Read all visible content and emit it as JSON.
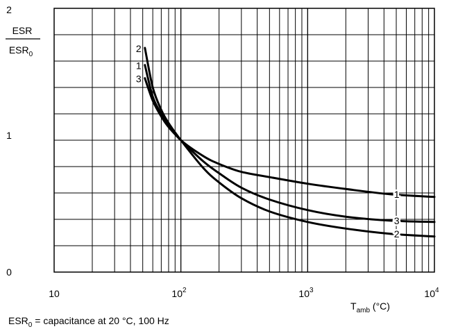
{
  "chart_data": {
    "type": "line",
    "x_scale": "log",
    "y_scale": "linear",
    "xlim": [
      10,
      10000
    ],
    "ylim": [
      0,
      2
    ],
    "grid": true,
    "x_ticks": [
      {
        "value": 10,
        "base": "10",
        "exp": ""
      },
      {
        "value": 100,
        "base": "10",
        "exp": "2"
      },
      {
        "value": 1000,
        "base": "10",
        "exp": "3"
      },
      {
        "value": 10000,
        "base": "10",
        "exp": "4"
      }
    ],
    "y_ticks": [
      "0",
      "1",
      "2"
    ],
    "xlabel": {
      "main": "T",
      "sub": "amb",
      "unit": " (°C)"
    },
    "ylabel": {
      "numerator": "ESR",
      "denominator_main": "ESR",
      "denominator_sub": "0"
    },
    "footnote": {
      "main": "ESR",
      "sub": "0",
      "rest": " = capacitance at 20 °C, 100 Hz"
    },
    "series": [
      {
        "name": "1",
        "x": [
          52,
          60,
          70,
          80,
          100,
          150,
          200,
          300,
          500,
          1000,
          2000,
          4500,
          10000
        ],
        "y": [
          1.57,
          1.33,
          1.2,
          1.11,
          1.0,
          0.88,
          0.82,
          0.76,
          0.72,
          0.67,
          0.63,
          0.59,
          0.57
        ]
      },
      {
        "name": "2",
        "x": [
          52,
          60,
          70,
          80,
          100,
          150,
          200,
          300,
          500,
          1000,
          2000,
          4500,
          10000
        ],
        "y": [
          1.7,
          1.4,
          1.23,
          1.13,
          1.0,
          0.79,
          0.68,
          0.56,
          0.46,
          0.38,
          0.33,
          0.29,
          0.27
        ]
      },
      {
        "name": "3",
        "x": [
          52,
          60,
          70,
          80,
          100,
          150,
          200,
          300,
          500,
          1000,
          2000,
          4500,
          10000
        ],
        "y": [
          1.47,
          1.3,
          1.18,
          1.1,
          1.0,
          0.84,
          0.75,
          0.64,
          0.55,
          0.47,
          0.42,
          0.39,
          0.38
        ]
      }
    ]
  }
}
